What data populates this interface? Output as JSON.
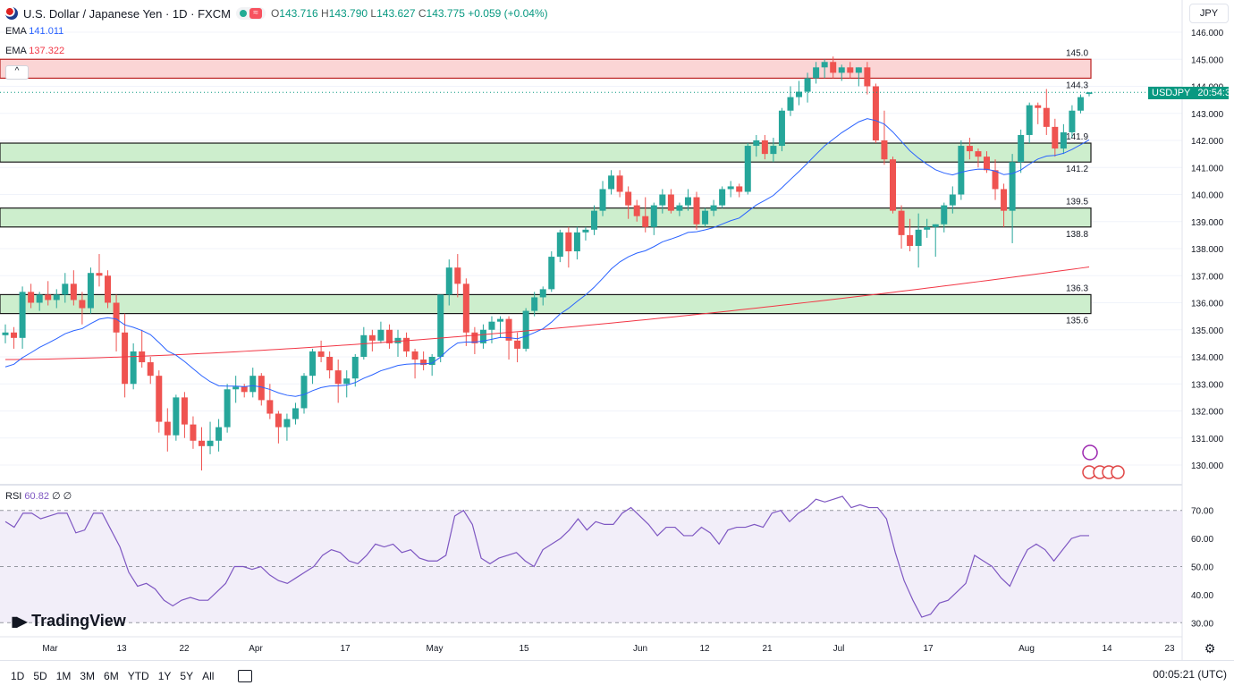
{
  "header": {
    "symbol": "U.S. Dollar / Japanese Yen · 1D · FXCM",
    "open_label": "O",
    "open": "143.716",
    "high_label": "H",
    "high": "143.790",
    "low_label": "L",
    "low": "143.627",
    "close_label": "C",
    "close": "143.775",
    "change": "+0.059 (+0.04%)",
    "wave_icon": "≈"
  },
  "indicators": {
    "ema1_label": "EMA",
    "ema1_value": "141.011",
    "ema2_label": "EMA",
    "ema2_value": "137.322",
    "rsi_label": "RSI",
    "rsi_value": "60.82",
    "rsi_extra": "∅ ∅"
  },
  "currency": "JPY",
  "price_tag": {
    "symbol": "USDJPY",
    "time": "20:54:38",
    "price": 143.775
  },
  "zones": [
    {
      "kind": "resistance",
      "top": 145.0,
      "bottom": 144.3,
      "top_label": "145.0",
      "bottom_label": "144.3"
    },
    {
      "kind": "support",
      "top": 141.9,
      "bottom": 141.2,
      "top_label": "141.9",
      "bottom_label": "141.2"
    },
    {
      "kind": "support",
      "top": 139.5,
      "bottom": 138.8,
      "top_label": "139.5",
      "bottom_label": "138.8"
    },
    {
      "kind": "support",
      "top": 136.3,
      "bottom": 135.6,
      "top_label": "136.3",
      "bottom_label": "135.6"
    }
  ],
  "colors": {
    "up": "#26a69a",
    "down": "#ef5350",
    "ema_fast": "#2962ff",
    "ema_slow": "#f23645",
    "rsi": "#7e57c2",
    "resistance": "#f8c9c9",
    "support": "#c9ecc9"
  },
  "chart_data": {
    "type": "candlestick",
    "x_axis_ticks": [
      "Mar",
      "13",
      "22",
      "Apr",
      "17",
      "May",
      "15",
      "Jun",
      "12",
      "21",
      "Jul",
      "17",
      "Aug",
      "14",
      "23"
    ],
    "y_ticks": [
      "146.000",
      "145.000",
      "144.000",
      "143.000",
      "142.000",
      "141.000",
      "140.000",
      "139.000",
      "138.000",
      "137.000",
      "136.000",
      "135.000",
      "134.000",
      "133.000",
      "132.000",
      "131.000",
      "130.000"
    ],
    "ylim": [
      129.6,
      146.2
    ],
    "candles": [
      [
        134.8,
        135.2,
        134.5,
        134.9
      ],
      [
        134.9,
        135.1,
        134.3,
        134.7
      ],
      [
        134.7,
        136.6,
        134.3,
        136.4
      ],
      [
        136.4,
        136.7,
        135.8,
        136.0
      ],
      [
        136.0,
        136.4,
        135.7,
        136.3
      ],
      [
        136.3,
        136.8,
        135.9,
        136.1
      ],
      [
        136.1,
        136.5,
        135.8,
        136.3
      ],
      [
        136.3,
        137.1,
        136.0,
        136.7
      ],
      [
        136.7,
        137.2,
        135.9,
        136.1
      ],
      [
        136.1,
        136.4,
        135.2,
        135.8
      ],
      [
        135.8,
        137.3,
        135.6,
        137.1
      ],
      [
        137.1,
        137.8,
        136.6,
        137.0
      ],
      [
        137.0,
        137.2,
        135.8,
        136.0
      ],
      [
        136.0,
        136.3,
        134.2,
        134.9
      ],
      [
        134.9,
        135.6,
        132.5,
        133.0
      ],
      [
        133.0,
        134.5,
        132.8,
        134.2
      ],
      [
        134.2,
        135.0,
        133.6,
        133.8
      ],
      [
        133.8,
        134.0,
        133.0,
        133.3
      ],
      [
        133.3,
        133.5,
        131.2,
        131.6
      ],
      [
        131.6,
        132.1,
        130.5,
        131.1
      ],
      [
        131.1,
        132.6,
        130.9,
        132.5
      ],
      [
        132.5,
        132.7,
        131.0,
        131.5
      ],
      [
        131.5,
        131.8,
        130.6,
        130.9
      ],
      [
        130.9,
        131.4,
        129.8,
        130.7
      ],
      [
        130.7,
        131.6,
        130.4,
        130.9
      ],
      [
        130.9,
        131.7,
        130.5,
        131.4
      ],
      [
        131.4,
        133.0,
        131.2,
        132.8
      ],
      [
        132.8,
        133.3,
        132.3,
        132.9
      ],
      [
        132.9,
        133.0,
        132.5,
        132.7
      ],
      [
        132.7,
        133.6,
        132.5,
        133.3
      ],
      [
        133.3,
        133.4,
        132.2,
        132.4
      ],
      [
        132.4,
        133.0,
        131.7,
        131.9
      ],
      [
        131.9,
        132.0,
        130.8,
        131.4
      ],
      [
        131.4,
        131.9,
        130.9,
        131.7
      ],
      [
        131.7,
        132.3,
        131.5,
        132.1
      ],
      [
        132.1,
        133.4,
        131.9,
        133.3
      ],
      [
        133.3,
        134.3,
        133.0,
        134.2
      ],
      [
        134.2,
        134.6,
        133.8,
        134.0
      ],
      [
        134.0,
        134.2,
        133.2,
        133.5
      ],
      [
        133.5,
        133.9,
        132.3,
        133.0
      ],
      [
        133.0,
        133.5,
        132.5,
        133.2
      ],
      [
        133.2,
        134.1,
        132.9,
        134.0
      ],
      [
        134.0,
        135.1,
        133.9,
        134.8
      ],
      [
        134.8,
        135.0,
        134.2,
        134.6
      ],
      [
        134.6,
        135.3,
        134.5,
        135.0
      ],
      [
        135.0,
        135.2,
        134.3,
        134.5
      ],
      [
        134.5,
        135.0,
        134.0,
        134.7
      ],
      [
        134.7,
        134.9,
        134.0,
        134.2
      ],
      [
        134.2,
        134.3,
        133.2,
        133.9
      ],
      [
        133.9,
        134.2,
        133.5,
        133.7
      ],
      [
        133.7,
        134.1,
        133.3,
        134.0
      ],
      [
        134.0,
        136.3,
        133.8,
        136.3
      ],
      [
        136.3,
        137.6,
        135.9,
        137.3
      ],
      [
        137.3,
        137.8,
        136.2,
        136.7
      ],
      [
        136.7,
        136.9,
        134.4,
        134.9
      ],
      [
        134.9,
        135.1,
        134.1,
        134.5
      ],
      [
        134.5,
        135.2,
        134.3,
        135.0
      ],
      [
        135.0,
        135.5,
        134.5,
        135.3
      ],
      [
        135.3,
        135.5,
        134.7,
        135.4
      ],
      [
        135.4,
        135.5,
        133.9,
        134.6
      ],
      [
        134.6,
        134.9,
        133.8,
        134.3
      ],
      [
        134.3,
        135.8,
        134.2,
        135.7
      ],
      [
        135.7,
        136.4,
        135.5,
        136.2
      ],
      [
        136.2,
        136.6,
        135.9,
        136.5
      ],
      [
        136.5,
        137.9,
        136.4,
        137.7
      ],
      [
        137.7,
        138.7,
        137.5,
        138.6
      ],
      [
        138.6,
        138.8,
        137.3,
        137.9
      ],
      [
        137.9,
        138.8,
        137.6,
        138.6
      ],
      [
        138.6,
        138.8,
        138.3,
        138.7
      ],
      [
        138.7,
        139.6,
        138.5,
        139.4
      ],
      [
        139.4,
        140.5,
        139.2,
        140.2
      ],
      [
        140.2,
        140.9,
        140.0,
        140.7
      ],
      [
        140.7,
        140.9,
        139.9,
        140.1
      ],
      [
        140.1,
        140.3,
        139.1,
        139.6
      ],
      [
        139.6,
        139.8,
        139.0,
        139.2
      ],
      [
        139.2,
        139.9,
        138.6,
        138.8
      ],
      [
        138.8,
        139.7,
        138.5,
        139.6
      ],
      [
        139.6,
        140.2,
        139.3,
        140.0
      ],
      [
        140.0,
        140.2,
        139.3,
        139.4
      ],
      [
        139.4,
        139.7,
        139.2,
        139.6
      ],
      [
        139.6,
        140.2,
        139.4,
        139.9
      ],
      [
        139.9,
        140.1,
        138.7,
        138.9
      ],
      [
        138.9,
        139.5,
        138.8,
        139.4
      ],
      [
        139.4,
        139.8,
        139.2,
        139.6
      ],
      [
        139.6,
        140.3,
        139.5,
        140.2
      ],
      [
        140.2,
        140.5,
        139.9,
        140.3
      ],
      [
        140.3,
        140.4,
        139.9,
        140.1
      ],
      [
        140.1,
        141.9,
        140.0,
        141.8
      ],
      [
        141.8,
        142.2,
        141.4,
        142.0
      ],
      [
        142.0,
        142.2,
        141.3,
        141.5
      ],
      [
        141.5,
        142.1,
        141.2,
        141.8
      ],
      [
        141.8,
        143.2,
        141.6,
        143.1
      ],
      [
        143.1,
        144.0,
        142.9,
        143.6
      ],
      [
        143.6,
        144.2,
        143.3,
        143.8
      ],
      [
        143.8,
        144.5,
        143.4,
        144.3
      ],
      [
        144.3,
        144.9,
        144.1,
        144.7
      ],
      [
        144.7,
        145.0,
        144.3,
        144.9
      ],
      [
        144.9,
        145.1,
        144.3,
        144.5
      ],
      [
        144.5,
        144.8,
        144.2,
        144.7
      ],
      [
        144.7,
        144.9,
        144.3,
        144.5
      ],
      [
        144.5,
        144.7,
        144.0,
        144.7
      ],
      [
        144.7,
        144.9,
        143.7,
        144.0
      ],
      [
        144.0,
        144.1,
        141.9,
        142.0
      ],
      [
        142.0,
        143.1,
        141.1,
        141.3
      ],
      [
        141.3,
        141.4,
        139.3,
        139.4
      ],
      [
        139.4,
        139.6,
        138.0,
        138.5
      ],
      [
        138.5,
        139.1,
        137.9,
        138.1
      ],
      [
        138.1,
        139.3,
        137.3,
        138.7
      ],
      [
        138.7,
        139.1,
        138.4,
        138.8
      ],
      [
        138.8,
        138.9,
        137.7,
        138.9
      ],
      [
        138.9,
        139.7,
        138.6,
        139.6
      ],
      [
        139.6,
        140.3,
        139.3,
        140.0
      ],
      [
        140.0,
        142.0,
        139.8,
        141.8
      ],
      [
        141.8,
        142.1,
        141.3,
        141.6
      ],
      [
        141.6,
        141.7,
        141.0,
        141.4
      ],
      [
        141.4,
        141.6,
        140.8,
        140.9
      ],
      [
        140.9,
        141.3,
        139.8,
        140.2
      ],
      [
        140.2,
        140.4,
        138.8,
        139.4
      ],
      [
        139.4,
        141.5,
        138.2,
        141.2
      ],
      [
        141.2,
        142.4,
        140.8,
        142.2
      ],
      [
        142.2,
        143.4,
        141.9,
        143.3
      ],
      [
        143.3,
        143.4,
        142.6,
        143.2
      ],
      [
        143.2,
        143.9,
        142.2,
        142.5
      ],
      [
        142.5,
        142.8,
        141.4,
        141.7
      ],
      [
        141.7,
        142.6,
        141.5,
        142.3
      ],
      [
        142.3,
        143.3,
        142.1,
        143.1
      ],
      [
        143.1,
        143.7,
        143.0,
        143.6
      ],
      [
        143.716,
        143.79,
        143.627,
        143.775
      ]
    ],
    "ema_fast": [
      133.9,
      134.0,
      134.2,
      134.5,
      134.8,
      135.0,
      135.1,
      135.2,
      135.3,
      135.3,
      135.4,
      135.5,
      135.7,
      136.0,
      136.6,
      137.2,
      137.7,
      138.1,
      138.4,
      138.8,
      139.2,
      139.6,
      140.0,
      140.3,
      140.5,
      140.8,
      141.0,
      141.2,
      141.4,
      141.5,
      141.7,
      141.8,
      142.0,
      142.2,
      142.4,
      142.6,
      142.8,
      143.0,
      143.2,
      143.3,
      143.4,
      143.5,
      143.6,
      143.7,
      143.9,
      144.0,
      144.1,
      144.3,
      144.4,
      144.5,
      144.6,
      144.7,
      144.7,
      144.9,
      145.1,
      145.4,
      145.8,
      146.0
    ],
    "rsi_range": [
      25,
      75
    ],
    "rsi_levels": [
      70,
      50,
      30
    ],
    "rsi_ticks": [
      "70.00",
      "60.00",
      "50.00",
      "40.00",
      "30.00"
    ],
    "rsi": [
      66,
      64,
      69,
      69,
      67,
      68,
      69,
      69,
      62,
      63,
      69,
      69,
      63,
      57,
      48,
      43,
      44,
      42,
      38,
      36,
      38,
      39,
      38,
      38,
      41,
      44,
      50,
      50,
      49,
      50,
      47,
      45,
      44,
      46,
      48,
      50,
      54,
      56,
      55,
      52,
      51,
      54,
      58,
      57,
      58,
      55,
      56,
      53,
      52,
      52,
      54,
      68,
      70,
      65,
      53,
      51,
      53,
      54,
      55,
      52,
      50,
      56,
      58,
      60,
      63,
      67,
      63,
      66,
      65,
      65,
      69,
      71,
      68,
      65,
      61,
      64,
      64,
      61,
      61,
      64,
      62,
      58,
      63,
      64,
      64,
      65,
      64,
      69,
      70,
      66,
      69,
      71,
      74,
      73,
      74,
      75,
      71,
      72,
      71,
      71,
      67,
      55,
      45,
      38,
      32,
      33,
      37,
      38,
      41,
      44,
      54,
      52,
      50,
      46,
      43,
      50,
      56,
      58,
      56,
      52,
      56,
      60,
      61,
      61
    ]
  },
  "axis_time_labels": [
    "Mar",
    "13",
    "22",
    "Apr",
    "17",
    "May",
    "15",
    "Jun",
    "12",
    "21",
    "Jul",
    "17",
    "Aug",
    "14",
    "23"
  ],
  "timeframes": [
    "1D",
    "5D",
    "1M",
    "3M",
    "6M",
    "YTD",
    "1Y",
    "5Y",
    "All"
  ],
  "clock": "00:05:21 (UTC)",
  "logo": "TradingView"
}
